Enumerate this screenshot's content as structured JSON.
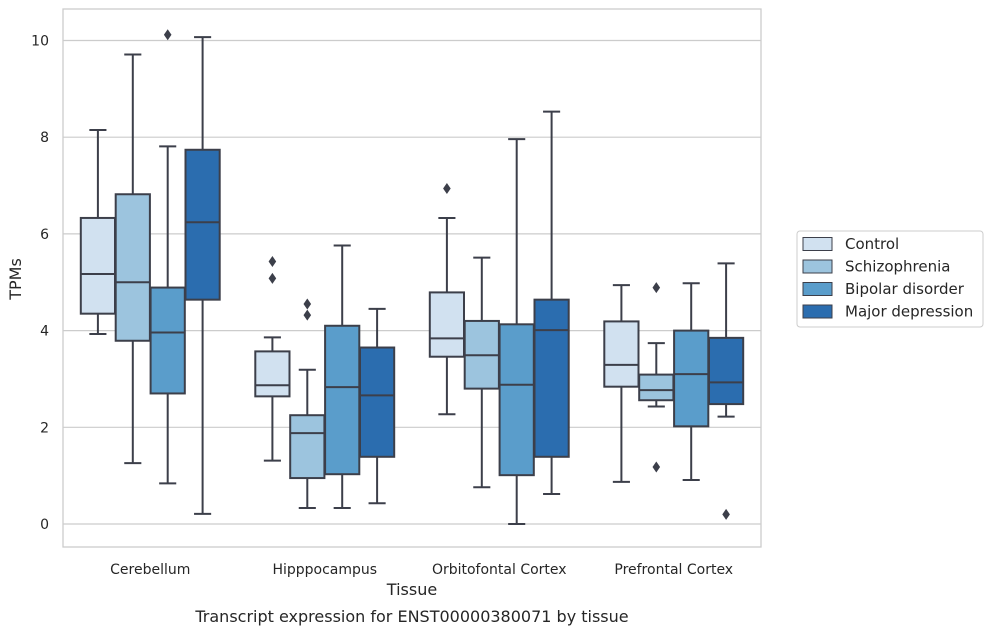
{
  "chart_data": {
    "type": "boxplot",
    "title": "Transcript expression for ENST00000380071 by tissue",
    "xlabel": "Tissue",
    "ylabel": "TPMs",
    "ylim": [
      -0.5,
      10.65
    ],
    "yticks": [
      0,
      2,
      4,
      6,
      8,
      10
    ],
    "grid": "horizontal",
    "legend_position": "right",
    "categories": [
      "Cerebellum",
      "Hipppocampus",
      "Orbitofontal Cortex",
      "Prefrontal Cortex"
    ],
    "series": [
      {
        "name": "Control",
        "color": "#d1e1f0",
        "boxes": [
          {
            "whislo": 3.93,
            "q1": 4.35,
            "med": 5.17,
            "q3": 6.33,
            "whishi": 8.15,
            "fliers": []
          },
          {
            "whislo": 1.31,
            "q1": 2.64,
            "med": 2.87,
            "q3": 3.57,
            "whishi": 3.86,
            "fliers": [
              5.43,
              5.08
            ]
          },
          {
            "whislo": 2.27,
            "q1": 3.46,
            "med": 3.84,
            "q3": 4.79,
            "whishi": 6.33,
            "fliers": [
              6.94
            ]
          },
          {
            "whislo": 0.87,
            "q1": 2.84,
            "med": 3.29,
            "q3": 4.19,
            "whishi": 4.94,
            "fliers": []
          }
        ]
      },
      {
        "name": "Schizophrenia",
        "color": "#9cc4de",
        "boxes": [
          {
            "whislo": 1.26,
            "q1": 3.79,
            "med": 5.0,
            "q3": 6.82,
            "whishi": 9.71,
            "fliers": []
          },
          {
            "whislo": 0.33,
            "q1": 0.95,
            "med": 1.88,
            "q3": 2.25,
            "whishi": 3.19,
            "fliers": [
              4.55,
              4.32
            ]
          },
          {
            "whislo": 0.76,
            "q1": 2.8,
            "med": 3.49,
            "q3": 4.2,
            "whishi": 5.51,
            "fliers": []
          },
          {
            "whislo": 2.43,
            "q1": 2.56,
            "med": 2.77,
            "q3": 3.09,
            "whishi": 3.74,
            "fliers": [
              4.89,
              1.18
            ]
          }
        ]
      },
      {
        "name": "Bipolar disorder",
        "color": "#5a9dcb",
        "boxes": [
          {
            "whislo": 0.84,
            "q1": 2.7,
            "med": 3.96,
            "q3": 4.89,
            "whishi": 7.81,
            "fliers": [
              10.12
            ]
          },
          {
            "whislo": 0.33,
            "q1": 1.03,
            "med": 2.83,
            "q3": 4.1,
            "whishi": 5.76,
            "fliers": []
          },
          {
            "whislo": 0.0,
            "q1": 1.01,
            "med": 2.88,
            "q3": 4.13,
            "whishi": 7.96,
            "fliers": []
          },
          {
            "whislo": 0.91,
            "q1": 2.02,
            "med": 3.1,
            "q3": 4.0,
            "whishi": 4.98,
            "fliers": []
          }
        ]
      },
      {
        "name": "Major depression",
        "color": "#2b6daf",
        "boxes": [
          {
            "whislo": 0.21,
            "q1": 4.64,
            "med": 6.24,
            "q3": 7.74,
            "whishi": 10.07,
            "fliers": []
          },
          {
            "whislo": 0.43,
            "q1": 1.39,
            "med": 2.66,
            "q3": 3.65,
            "whishi": 4.45,
            "fliers": []
          },
          {
            "whislo": 0.62,
            "q1": 1.39,
            "med": 4.01,
            "q3": 4.64,
            "whishi": 8.53,
            "fliers": []
          },
          {
            "whislo": 2.22,
            "q1": 2.48,
            "med": 2.93,
            "q3": 3.85,
            "whishi": 5.39,
            "fliers": [
              0.2
            ]
          }
        ]
      }
    ]
  }
}
